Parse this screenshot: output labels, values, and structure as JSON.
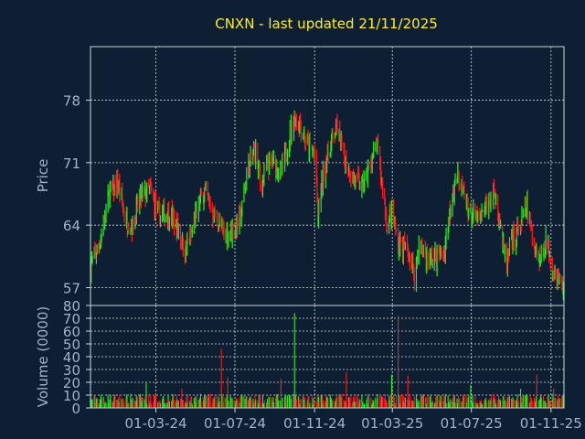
{
  "chart_data": {
    "type": "candlestick",
    "title": "CNXN - last updated 21/11/2025",
    "price_panel": {
      "ylabel": "Price",
      "y_ticks": [
        57,
        64,
        71,
        78
      ],
      "ylim": [
        55,
        84
      ]
    },
    "volume_panel": {
      "ylabel": "Volume (0000)",
      "y_ticks": [
        0,
        10,
        20,
        30,
        40,
        50,
        60,
        70,
        80
      ],
      "ylim": [
        0,
        80
      ]
    },
    "x_ticks": [
      "01-03-24",
      "01-07-24",
      "01-11-24",
      "01-03-25",
      "01-07-25",
      "01-11-25"
    ],
    "x_range": [
      "2023-11-21",
      "2025-11-21"
    ],
    "colors": {
      "up": "#22ee22",
      "down": "#ff1a1a",
      "background": "#0f1f33",
      "title": "#ffee22",
      "axis": "#9fb4c8"
    },
    "price_path": [
      [
        "2023-11-21",
        59.5
      ],
      [
        "2023-12-05",
        62.0
      ],
      [
        "2023-12-20",
        67.5
      ],
      [
        "2024-01-02",
        68.5
      ],
      [
        "2024-01-15",
        64.5
      ],
      [
        "2024-01-25",
        64.0
      ],
      [
        "2024-02-05",
        67.0
      ],
      [
        "2024-02-20",
        68.0
      ],
      [
        "2024-03-05",
        65.0
      ],
      [
        "2024-03-20",
        65.5
      ],
      [
        "2024-04-05",
        63.5
      ],
      [
        "2024-04-15",
        61.0
      ],
      [
        "2024-04-25",
        63.0
      ],
      [
        "2024-05-05",
        66.0
      ],
      [
        "2024-05-15",
        68.0
      ],
      [
        "2024-05-30",
        65.0
      ],
      [
        "2024-06-15",
        63.0
      ],
      [
        "2024-06-30",
        63.5
      ],
      [
        "2024-07-10",
        65.0
      ],
      [
        "2024-07-20",
        70.0
      ],
      [
        "2024-08-01",
        72.5
      ],
      [
        "2024-08-10",
        68.5
      ],
      [
        "2024-08-20",
        70.5
      ],
      [
        "2024-09-01",
        71.0
      ],
      [
        "2024-09-10",
        69.5
      ],
      [
        "2024-09-20",
        73.0
      ],
      [
        "2024-10-01",
        76.0
      ],
      [
        "2024-10-10",
        75.5
      ],
      [
        "2024-10-20",
        73.0
      ],
      [
        "2024-11-01",
        72.0
      ],
      [
        "2024-11-06",
        65.0
      ],
      [
        "2024-11-15",
        70.0
      ],
      [
        "2024-11-25",
        73.0
      ],
      [
        "2024-12-05",
        75.0
      ],
      [
        "2024-12-15",
        72.0
      ],
      [
        "2025-01-01",
        69.0
      ],
      [
        "2025-01-15",
        68.5
      ],
      [
        "2025-01-25",
        70.5
      ],
      [
        "2025-02-05",
        73.0
      ],
      [
        "2025-02-12",
        69.0
      ],
      [
        "2025-02-20",
        64.5
      ],
      [
        "2025-03-01",
        65.0
      ],
      [
        "2025-03-10",
        62.0
      ],
      [
        "2025-03-25",
        61.0
      ],
      [
        "2025-04-05",
        58.5
      ],
      [
        "2025-04-12",
        62.0
      ],
      [
        "2025-04-25",
        60.0
      ],
      [
        "2025-05-10",
        60.5
      ],
      [
        "2025-05-20",
        61.0
      ],
      [
        "2025-06-01",
        67.5
      ],
      [
        "2025-06-10",
        70.0
      ],
      [
        "2025-06-20",
        67.0
      ],
      [
        "2025-07-01",
        65.0
      ],
      [
        "2025-07-15",
        64.5
      ],
      [
        "2025-07-25",
        66.5
      ],
      [
        "2025-08-05",
        67.5
      ],
      [
        "2025-08-12",
        65.5
      ],
      [
        "2025-08-20",
        61.0
      ],
      [
        "2025-08-25",
        59.5
      ],
      [
        "2025-09-01",
        62.0
      ],
      [
        "2025-09-15",
        64.0
      ],
      [
        "2025-09-25",
        66.0
      ],
      [
        "2025-10-05",
        62.0
      ],
      [
        "2025-10-15",
        60.0
      ],
      [
        "2025-10-25",
        62.5
      ],
      [
        "2025-11-05",
        59.0
      ],
      [
        "2025-11-15",
        57.5
      ],
      [
        "2025-11-21",
        57.0
      ]
    ],
    "volume_spikes": [
      [
        "2023-12-10",
        25
      ],
      [
        "2024-02-15",
        20
      ],
      [
        "2024-04-10",
        15
      ],
      [
        "2024-06-10",
        46
      ],
      [
        "2024-06-20",
        24
      ],
      [
        "2024-08-01",
        10
      ],
      [
        "2024-09-10",
        23
      ],
      [
        "2024-10-01",
        74
      ],
      [
        "2024-12-20",
        28
      ],
      [
        "2025-02-15",
        25
      ],
      [
        "2025-02-28",
        26
      ],
      [
        "2025-03-10",
        72
      ],
      [
        "2025-03-25",
        25
      ],
      [
        "2025-06-15",
        48
      ],
      [
        "2025-06-30",
        18
      ],
      [
        "2025-08-10",
        22
      ],
      [
        "2025-09-15",
        15
      ],
      [
        "2025-10-10",
        26
      ],
      [
        "2025-11-05",
        15
      ]
    ]
  }
}
